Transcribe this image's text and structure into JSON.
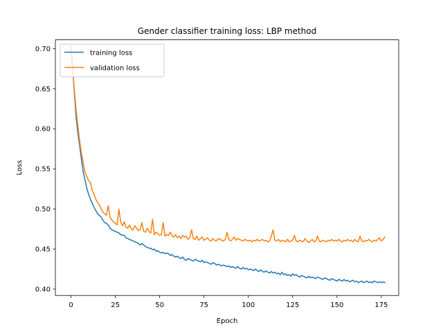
{
  "chart_data": {
    "type": "line",
    "title": "Gender classifier training loss: LBP method",
    "xlabel": "Epoch",
    "ylabel": "Loss",
    "xlim": [
      -8.8,
      184.8
    ],
    "ylim": [
      0.392,
      0.711
    ],
    "xticks": [
      0,
      25,
      50,
      75,
      100,
      125,
      150,
      175
    ],
    "yticks": [
      0.4,
      0.45,
      0.5,
      0.55,
      0.6,
      0.65,
      0.7
    ],
    "xtick_labels": [
      "0",
      "25",
      "50",
      "75",
      "100",
      "125",
      "150",
      "175"
    ],
    "ytick_labels": [
      "0.40",
      "0.45",
      "0.50",
      "0.55",
      "0.60",
      "0.65",
      "0.70"
    ],
    "grid": false,
    "legend_position": "upper-left",
    "series": [
      {
        "name": "training loss",
        "color": "#1f77b4",
        "values": [
          0.7,
          0.676,
          0.641,
          0.612,
          0.593,
          0.577,
          0.56,
          0.545,
          0.535,
          0.525,
          0.518,
          0.512,
          0.507,
          0.502,
          0.498,
          0.494,
          0.492,
          0.49,
          0.486,
          0.483,
          0.482,
          0.48,
          0.476,
          0.474,
          0.473,
          0.472,
          0.471,
          0.47,
          0.468,
          0.467,
          0.467,
          0.464,
          0.463,
          0.462,
          0.461,
          0.46,
          0.459,
          0.458,
          0.457,
          0.455,
          0.457,
          0.455,
          0.453,
          0.452,
          0.451,
          0.451,
          0.449,
          0.45,
          0.447,
          0.448,
          0.446,
          0.445,
          0.446,
          0.444,
          0.445,
          0.444,
          0.442,
          0.443,
          0.441,
          0.44,
          0.441,
          0.439,
          0.438,
          0.44,
          0.437,
          0.436,
          0.438,
          0.437,
          0.436,
          0.435,
          0.437,
          0.436,
          0.435,
          0.434,
          0.436,
          0.433,
          0.434,
          0.433,
          0.432,
          0.431,
          0.433,
          0.432,
          0.43,
          0.431,
          0.43,
          0.429,
          0.43,
          0.429,
          0.428,
          0.429,
          0.427,
          0.428,
          0.427,
          0.426,
          0.428,
          0.426,
          0.425,
          0.427,
          0.425,
          0.426,
          0.424,
          0.425,
          0.424,
          0.423,
          0.425,
          0.423,
          0.422,
          0.424,
          0.422,
          0.421,
          0.423,
          0.421,
          0.42,
          0.422,
          0.42,
          0.421,
          0.419,
          0.42,
          0.418,
          0.421,
          0.418,
          0.419,
          0.417,
          0.418,
          0.416,
          0.419,
          0.417,
          0.418,
          0.416,
          0.415,
          0.417,
          0.416,
          0.415,
          0.414,
          0.416,
          0.414,
          0.415,
          0.414,
          0.413,
          0.415,
          0.414,
          0.413,
          0.412,
          0.414,
          0.413,
          0.412,
          0.411,
          0.413,
          0.412,
          0.411,
          0.41,
          0.412,
          0.411,
          0.41,
          0.412,
          0.41,
          0.411,
          0.409,
          0.41,
          0.411,
          0.409,
          0.41,
          0.408,
          0.409,
          0.41,
          0.408,
          0.409,
          0.41,
          0.408,
          0.409,
          0.408,
          0.41,
          0.409,
          0.408,
          0.409,
          0.408,
          0.409,
          0.408
        ]
      },
      {
        "name": "validation loss",
        "color": "#ff7f0e",
        "values": [
          0.703,
          0.675,
          0.645,
          0.621,
          0.601,
          0.583,
          0.568,
          0.556,
          0.545,
          0.54,
          0.535,
          0.533,
          0.523,
          0.518,
          0.512,
          0.508,
          0.505,
          0.5,
          0.496,
          0.494,
          0.492,
          0.504,
          0.49,
          0.486,
          0.484,
          0.482,
          0.48,
          0.5,
          0.484,
          0.479,
          0.484,
          0.477,
          0.476,
          0.48,
          0.475,
          0.474,
          0.479,
          0.476,
          0.473,
          0.474,
          0.483,
          0.472,
          0.471,
          0.476,
          0.472,
          0.47,
          0.487,
          0.468,
          0.471,
          0.469,
          0.467,
          0.468,
          0.483,
          0.466,
          0.468,
          0.467,
          0.471,
          0.466,
          0.465,
          0.468,
          0.464,
          0.466,
          0.463,
          0.467,
          0.465,
          0.466,
          0.462,
          0.464,
          0.474,
          0.463,
          0.462,
          0.466,
          0.461,
          0.463,
          0.465,
          0.461,
          0.462,
          0.464,
          0.461,
          0.46,
          0.463,
          0.461,
          0.46,
          0.463,
          0.462,
          0.461,
          0.46,
          0.462,
          0.471,
          0.462,
          0.46,
          0.462,
          0.465,
          0.461,
          0.463,
          0.462,
          0.461,
          0.46,
          0.462,
          0.461,
          0.46,
          0.461,
          0.459,
          0.461,
          0.46,
          0.462,
          0.46,
          0.461,
          0.462,
          0.46,
          0.461,
          0.459,
          0.46,
          0.466,
          0.474,
          0.461,
          0.46,
          0.462,
          0.459,
          0.461,
          0.46,
          0.459,
          0.462,
          0.459,
          0.46,
          0.461,
          0.467,
          0.46,
          0.459,
          0.461,
          0.46,
          0.459,
          0.463,
          0.46,
          0.458,
          0.46,
          0.462,
          0.459,
          0.46,
          0.466,
          0.46,
          0.459,
          0.461,
          0.46,
          0.459,
          0.461,
          0.46,
          0.462,
          0.46,
          0.461,
          0.46,
          0.462,
          0.46,
          0.459,
          0.461,
          0.46,
          0.462,
          0.46,
          0.461,
          0.459,
          0.462,
          0.46,
          0.459,
          0.466,
          0.46,
          0.459,
          0.461,
          0.46,
          0.462,
          0.46,
          0.459,
          0.461,
          0.46,
          0.462,
          0.464,
          0.46,
          0.462,
          0.465
        ]
      }
    ]
  }
}
